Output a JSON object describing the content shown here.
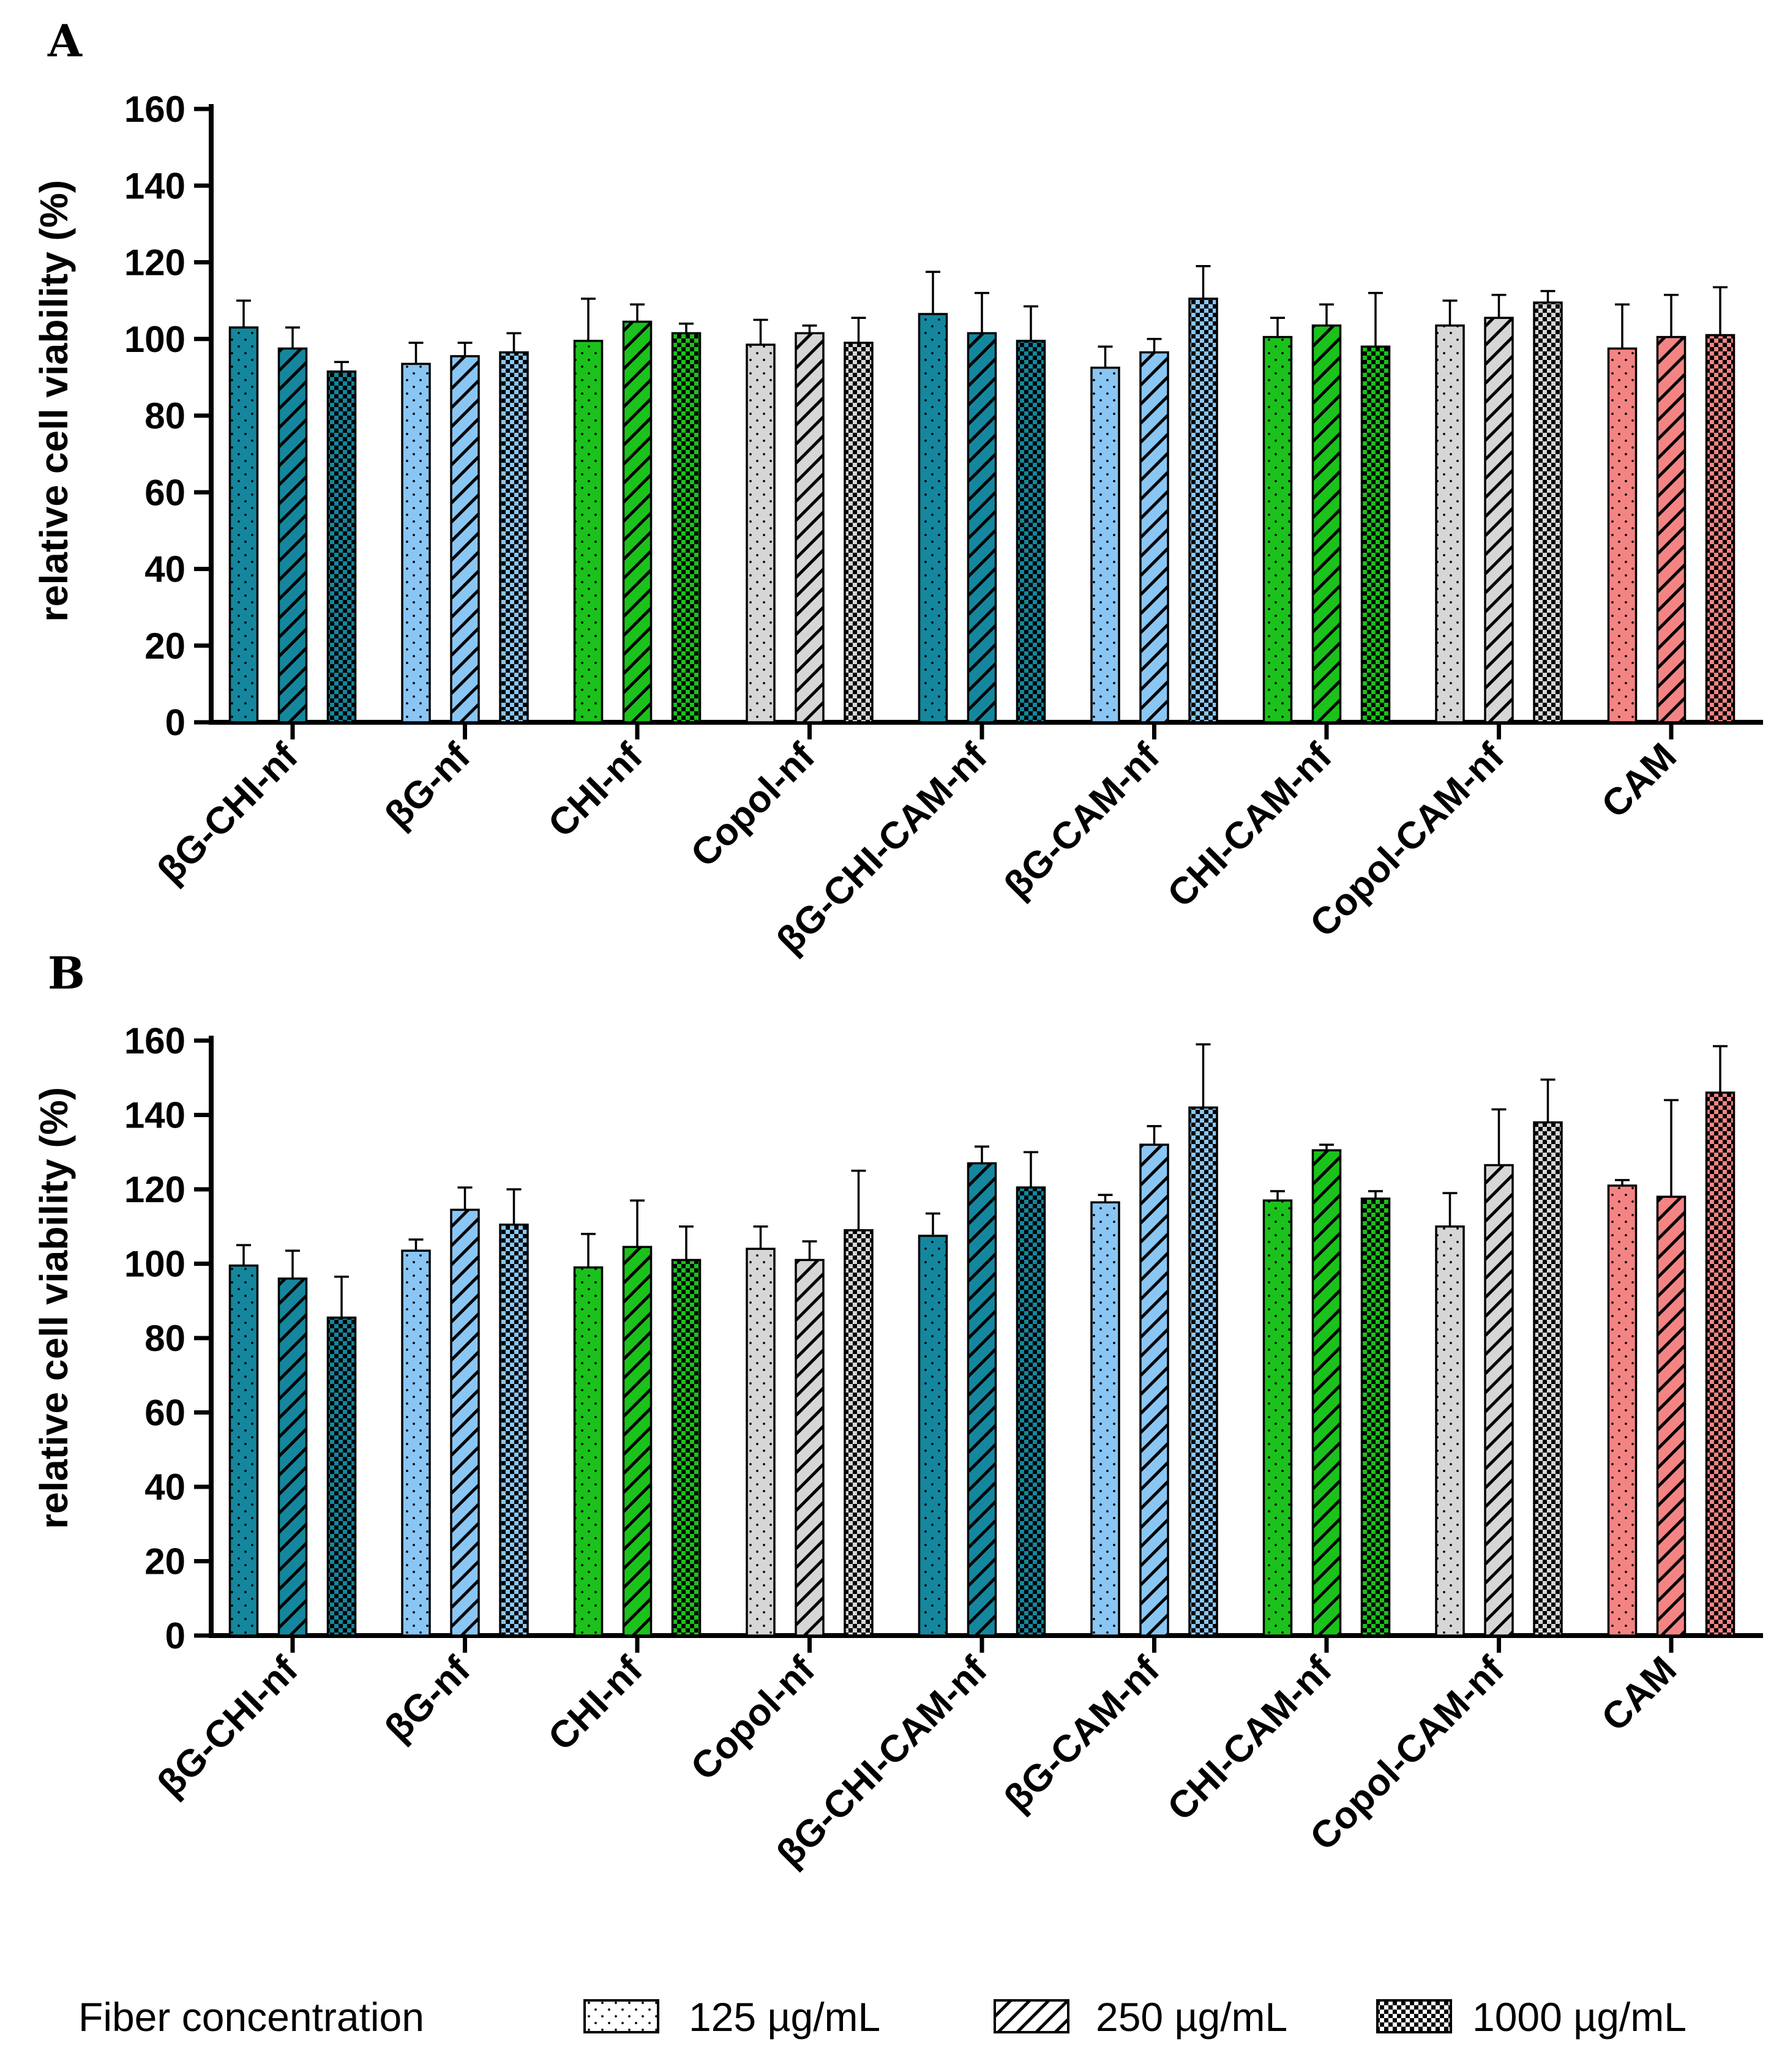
{
  "legend": {
    "title": "Fiber concentration",
    "entries": [
      {
        "label": "125 µg/mL",
        "pattern": "dots"
      },
      {
        "label": "250 µg/mL",
        "pattern": "stripes"
      },
      {
        "label": "1000 µg/mL",
        "pattern": "checker"
      }
    ]
  },
  "colors": {
    "teal": "#14879e",
    "lightblue": "#8ac6f4",
    "green": "#1bc21b",
    "grey": "#d6d6d6",
    "salmon": "#f48484"
  },
  "chart_data": [
    {
      "panel": "A",
      "type": "bar",
      "ylabel": "relative cell viability (%)",
      "ylim": [
        0,
        160
      ],
      "yticks": [
        0,
        20,
        40,
        60,
        80,
        100,
        120,
        140,
        160
      ],
      "categories": [
        "βG-CHI-nf",
        "βG-nf",
        "CHI-nf",
        "Copol-nf",
        "βG-CHI-CAM-nf",
        "βG-CAM-nf",
        "CHI-CAM-nf",
        "Copol-CAM-nf",
        "CAM"
      ],
      "category_colors": [
        "teal",
        "lightblue",
        "green",
        "grey",
        "teal",
        "lightblue",
        "green",
        "grey",
        "salmon"
      ],
      "series": [
        {
          "name": "125 µg/mL",
          "values": [
            103,
            93.5,
            99.5,
            98.5,
            106.5,
            92.5,
            100.5,
            103.5,
            97.5
          ],
          "errors": [
            7,
            5.5,
            11,
            6.5,
            11,
            5.5,
            5,
            6.5,
            11.5
          ]
        },
        {
          "name": "250 µg/mL",
          "values": [
            97.5,
            95.5,
            104.5,
            101.5,
            101.5,
            96.5,
            103.5,
            105.5,
            100.5
          ],
          "errors": [
            5.5,
            3.5,
            4.5,
            2,
            10.5,
            3.5,
            5.5,
            6,
            11
          ]
        },
        {
          "name": "1000 µg/mL",
          "values": [
            91.5,
            96.5,
            101.5,
            99,
            99.5,
            110.5,
            98,
            109.5,
            101
          ],
          "errors": [
            2.5,
            5,
            2.5,
            6.5,
            9,
            8.5,
            14,
            3,
            12.5
          ]
        }
      ]
    },
    {
      "panel": "B",
      "type": "bar",
      "ylabel": "relative cell viability (%)",
      "ylim": [
        0,
        160
      ],
      "yticks": [
        0,
        20,
        40,
        60,
        80,
        100,
        120,
        140,
        160
      ],
      "categories": [
        "βG-CHI-nf",
        "βG-nf",
        "CHI-nf",
        "Copol-nf",
        "βG-CHI-CAM-nf",
        "βG-CAM-nf",
        "CHI-CAM-nf",
        "Copol-CAM-nf",
        "CAM"
      ],
      "category_colors": [
        "teal",
        "lightblue",
        "green",
        "grey",
        "teal",
        "lightblue",
        "green",
        "grey",
        "salmon"
      ],
      "series": [
        {
          "name": "125 µg/mL",
          "values": [
            99.5,
            103.5,
            99,
            104,
            107.5,
            116.5,
            117,
            110,
            121
          ],
          "errors": [
            5.5,
            3,
            9,
            6,
            6,
            2,
            2.5,
            9,
            1.5
          ]
        },
        {
          "name": "250 µg/mL",
          "values": [
            96,
            114.5,
            104.5,
            101,
            127,
            132,
            130.5,
            126.5,
            118
          ],
          "errors": [
            7.5,
            6,
            12.5,
            5,
            4.5,
            5,
            1.5,
            15,
            26
          ]
        },
        {
          "name": "1000 µg/mL",
          "values": [
            85.5,
            110.5,
            101,
            109,
            120.5,
            142,
            117.5,
            138,
            146
          ],
          "errors": [
            11,
            9.5,
            9,
            16,
            9.5,
            17,
            2,
            11.5,
            12.5
          ]
        }
      ]
    }
  ]
}
